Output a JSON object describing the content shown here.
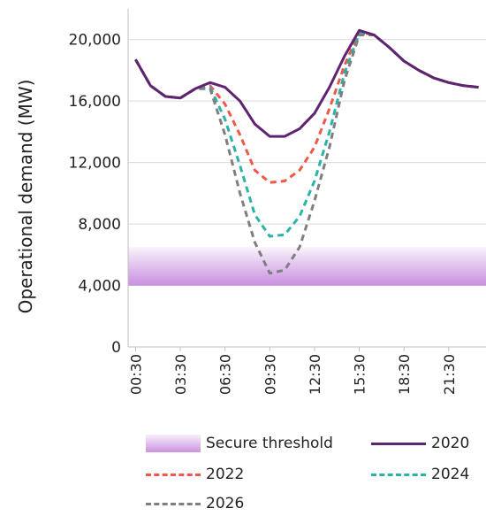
{
  "chart_data": {
    "type": "line",
    "ylabel": "Operational demand (MW)",
    "xlabel": "",
    "ylim": [
      0,
      22000
    ],
    "yticks": [
      "0",
      "4,000",
      "8,000",
      "12,000",
      "16,000",
      "20,000"
    ],
    "ytick_values": [
      0,
      4000,
      8000,
      12000,
      16000,
      20000
    ],
    "xticks": [
      "00:30",
      "03:30",
      "06:30",
      "09:30",
      "12:30",
      "15:30",
      "18:30",
      "21:30"
    ],
    "x": [
      "00:30",
      "01:30",
      "02:30",
      "03:30",
      "04:30",
      "05:30",
      "06:30",
      "07:30",
      "08:30",
      "09:30",
      "10:30",
      "11:30",
      "12:30",
      "13:30",
      "14:30",
      "15:30",
      "16:30",
      "17:30",
      "18:30",
      "19:30",
      "20:30",
      "21:30",
      "22:30",
      "23:30"
    ],
    "grid": true,
    "band": {
      "name": "Secure threshold",
      "range": [
        4000,
        6500
      ],
      "color": "#b769d6"
    },
    "series": [
      {
        "name": "2020",
        "color": "#5e2470",
        "dash": "solid",
        "values": [
          18700,
          17000,
          16300,
          16200,
          16800,
          17200,
          16900,
          16000,
          14500,
          13700,
          13700,
          14200,
          15200,
          16900,
          18900,
          20600,
          20300,
          19500,
          18600,
          18000,
          17500,
          17200,
          17000,
          16900
        ]
      },
      {
        "name": "2022",
        "color": "#ee5a49",
        "dash": "dashed",
        "values": [
          18700,
          17000,
          16300,
          16200,
          16800,
          17000,
          15800,
          13800,
          11500,
          10700,
          10800,
          11500,
          13000,
          15500,
          18300,
          20500,
          20300,
          19500,
          18600,
          18000,
          17500,
          17200,
          17000,
          16900
        ]
      },
      {
        "name": "2024",
        "color": "#2bb3a8",
        "dash": "dashed",
        "values": [
          18700,
          17000,
          16300,
          16200,
          16800,
          16900,
          14800,
          11800,
          8600,
          7200,
          7300,
          8500,
          10800,
          14000,
          17800,
          20400,
          20300,
          19500,
          18600,
          18000,
          17500,
          17200,
          17000,
          16900
        ]
      },
      {
        "name": "2026",
        "color": "#7f7f7f",
        "dash": "dashed",
        "values": [
          18700,
          17000,
          16300,
          16200,
          16800,
          16800,
          13800,
          10000,
          6800,
          4800,
          5000,
          6500,
          9500,
          13000,
          17300,
          20300,
          20300,
          19500,
          18600,
          18000,
          17500,
          17200,
          17000,
          16900
        ]
      }
    ]
  }
}
